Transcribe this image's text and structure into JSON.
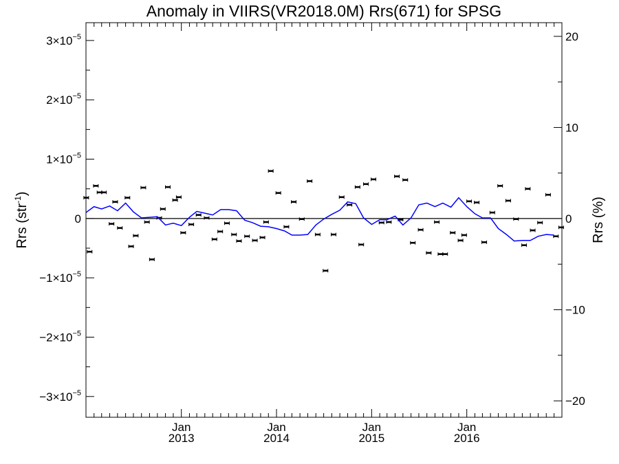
{
  "chart_data": {
    "type": "scatter",
    "title": "Anomaly in VIIRS(VR2018.0M) Rrs(671) for SPSG",
    "ylabel_left": {
      "main": "Rrs (str",
      "sup": "-1",
      "close": ")"
    },
    "ylabel_right": "Rrs (%)",
    "xlabel": "",
    "xlim": [
      "2012-01-01",
      "2016-12-31"
    ],
    "ylim_left": [
      -3.35e-05,
      3.3e-05
    ],
    "ylim_right": [
      -21.8,
      21.5
    ],
    "grid": false,
    "zero_line": true,
    "colors": {
      "line": "#0000ff",
      "points": "#000000",
      "axes": "#000000"
    },
    "x_ticks": [
      {
        "x": "2013-01-01",
        "label": "Jan",
        "year": "2013"
      },
      {
        "x": "2014-01-01",
        "label": "Jan",
        "year": "2014"
      },
      {
        "x": "2015-01-01",
        "label": "Jan",
        "year": "2015"
      },
      {
        "x": "2016-01-01",
        "label": "Jan",
        "year": "2016"
      }
    ],
    "y_ticks_left": [
      {
        "y": 3e-05,
        "mant": "3×10",
        "exp": "−5"
      },
      {
        "y": 2e-05,
        "mant": "2×10",
        "exp": "−5"
      },
      {
        "y": 1e-05,
        "mant": "1×10",
        "exp": "−5"
      },
      {
        "y": 0,
        "mant": "0",
        "exp": ""
      },
      {
        "y": -1e-05,
        "mant": "−1×10",
        "exp": "−5"
      },
      {
        "y": -2e-05,
        "mant": "−2×10",
        "exp": "−5"
      },
      {
        "y": -3e-05,
        "mant": "−3×10",
        "exp": "−5"
      }
    ],
    "y_ticks_right": [
      {
        "y": 20,
        "label": "20"
      },
      {
        "y": 10,
        "label": "10"
      },
      {
        "y": 0,
        "label": "0"
      },
      {
        "y": -10,
        "label": "−10"
      },
      {
        "y": -20,
        "label": "−20"
      }
    ],
    "series": [
      {
        "kind": "points",
        "x": [
          "2012-01-02",
          "2012-01-15",
          "2012-02-08",
          "2012-02-22",
          "2012-03-10",
          "2012-04-08",
          "2012-04-22",
          "2012-05-10",
          "2012-06-08",
          "2012-06-22",
          "2012-07-10",
          "2012-08-08",
          "2012-08-22",
          "2012-09-10",
          "2012-10-08",
          "2012-10-22",
          "2012-11-10",
          "2012-12-08",
          "2012-12-22",
          "2013-01-08",
          "2013-02-08",
          "2013-03-08",
          "2013-04-08",
          "2013-05-08",
          "2013-05-30",
          "2013-06-25",
          "2013-07-22",
          "2013-08-10",
          "2013-09-10",
          "2013-10-10",
          "2013-11-08",
          "2013-11-22",
          "2013-12-10",
          "2014-01-08",
          "2014-02-08",
          "2014-03-08",
          "2014-04-08",
          "2014-05-08",
          "2014-06-08",
          "2014-07-08",
          "2014-08-08",
          "2014-09-08",
          "2014-10-08",
          "2014-11-08",
          "2014-11-22",
          "2014-12-10",
          "2015-01-08",
          "2015-02-08",
          "2015-03-08",
          "2015-04-08",
          "2015-04-22",
          "2015-05-10",
          "2015-06-08",
          "2015-07-08",
          "2015-08-08",
          "2015-09-08",
          "2015-09-22",
          "2015-10-10",
          "2015-11-08",
          "2015-12-08",
          "2015-12-22",
          "2016-01-10",
          "2016-02-08",
          "2016-03-08",
          "2016-04-08",
          "2016-05-08",
          "2016-06-08",
          "2016-07-08",
          "2016-08-08",
          "2016-08-22",
          "2016-09-10",
          "2016-10-08",
          "2016-11-08",
          "2016-12-08",
          "2016-12-28"
        ],
        "y": [
          3.5e-06,
          -5.6e-06,
          5.5e-06,
          4.4e-06,
          4.4e-06,
          -9e-07,
          2.8e-06,
          -1.6e-06,
          3.5e-06,
          -4.7e-06,
          -2.9e-06,
          5.2e-06,
          -6e-07,
          -6.9e-06,
          1e-07,
          1.6e-06,
          5.3e-06,
          3.1e-06,
          3.6e-06,
          -2.4e-06,
          -1e-06,
          6e-07,
          1e-07,
          -3.5e-06,
          -2.2e-06,
          -8e-07,
          -2.7e-06,
          -3.8e-06,
          -3e-06,
          -3.7e-06,
          -3.2e-06,
          -6e-07,
          8e-06,
          4.3e-06,
          -1.4e-06,
          2.8e-06,
          -1e-07,
          6.3e-06,
          -2.7e-06,
          -8.8e-06,
          -2.7e-06,
          3.6e-06,
          2.3e-06,
          5.3e-06,
          -4.4e-06,
          5.8e-06,
          6.6e-06,
          -7e-07,
          -6e-07,
          7.1e-06,
          -2e-07,
          6.5e-06,
          -4.1e-06,
          -1.9e-06,
          -5.8e-06,
          -6e-07,
          -6e-06,
          -6e-06,
          -2.4e-06,
          -3.7e-06,
          -2.8e-06,
          2.9e-06,
          2.7e-06,
          -4e-06,
          1e-06,
          5.5e-06,
          3e-06,
          -1e-07,
          -4.5e-06,
          5e-06,
          -2e-06,
          -7e-07,
          4e-06,
          -3e-06,
          -1.5e-06
        ]
      },
      {
        "kind": "line",
        "x": [
          "2012-01-01",
          "2012-02-01",
          "2012-03-01",
          "2012-04-01",
          "2012-05-01",
          "2012-06-01",
          "2012-07-01",
          "2012-08-01",
          "2012-09-01",
          "2012-10-01",
          "2012-11-01",
          "2012-12-01",
          "2013-01-01",
          "2013-02-01",
          "2013-03-01",
          "2013-04-01",
          "2013-05-01",
          "2013-06-01",
          "2013-07-01",
          "2013-08-01",
          "2013-09-01",
          "2013-10-01",
          "2013-11-01",
          "2013-12-01",
          "2014-01-01",
          "2014-02-01",
          "2014-03-01",
          "2014-04-01",
          "2014-05-01",
          "2014-06-01",
          "2014-07-01",
          "2014-08-01",
          "2014-09-01",
          "2014-10-01",
          "2014-11-01",
          "2014-12-01",
          "2015-01-01",
          "2015-02-01",
          "2015-03-01",
          "2015-04-01",
          "2015-05-01",
          "2015-06-01",
          "2015-07-01",
          "2015-08-01",
          "2015-09-01",
          "2015-10-01",
          "2015-11-01",
          "2015-12-01",
          "2016-01-01",
          "2016-02-01",
          "2016-03-01",
          "2016-04-01",
          "2016-05-01",
          "2016-06-01",
          "2016-07-01",
          "2016-08-01",
          "2016-09-01",
          "2016-10-01",
          "2016-11-01",
          "2016-12-01"
        ],
        "y": [
          1e-06,
          2e-06,
          1.6e-06,
          2.1e-06,
          1.3e-06,
          2.6e-06,
          1.1e-06,
          1e-07,
          2e-07,
          3e-07,
          -1.1e-06,
          -8e-07,
          -1.2e-06,
          2e-07,
          1.2e-06,
          9e-07,
          6e-07,
          1.5e-06,
          1.5e-06,
          1.3e-06,
          -3e-07,
          -7e-07,
          -1.3e-06,
          -1.4e-06,
          -1.7e-06,
          -2.1e-06,
          -2.8e-06,
          -2.8e-06,
          -2.7e-06,
          -1.1e-06,
          -1e-07,
          7e-07,
          1.4e-06,
          2.8e-06,
          2.5e-06,
          1e-07,
          -1e-06,
          -2e-07,
          -2e-07,
          4e-07,
          -1.1e-06,
          1e-07,
          2.3e-06,
          2.6e-06,
          2e-06,
          2.6e-06,
          1.9e-06,
          3.5e-06,
          2e-06,
          8e-07,
          1e-07,
          1e-07,
          -1.7e-06,
          -2.7e-06,
          -3.8e-06,
          -3.7e-06,
          -3.7e-06,
          -3e-06,
          -2.7e-06,
          -2.8e-06
        ]
      }
    ]
  }
}
